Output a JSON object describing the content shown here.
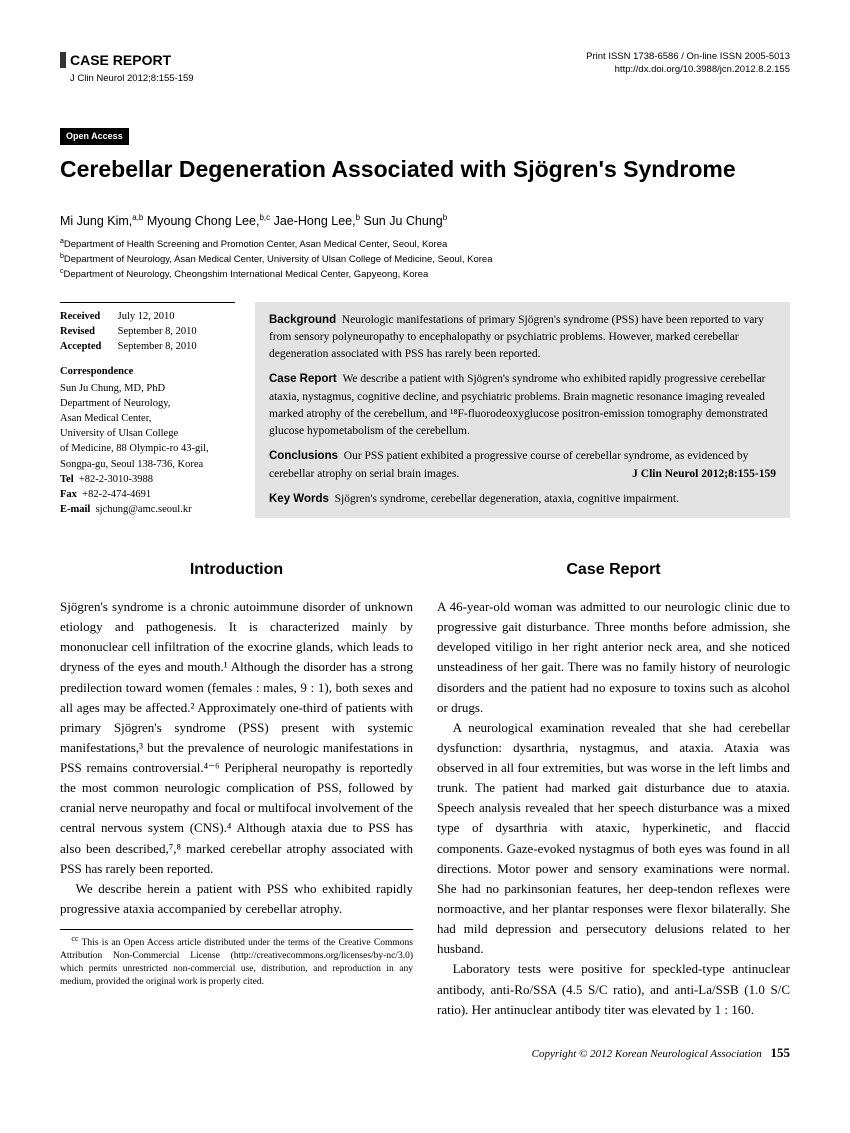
{
  "header": {
    "case_report_label": "CASE REPORT",
    "journal_cite": "J Clin Neurol 2012;8:155-159",
    "issn_line": "Print ISSN 1738-6586 / On-line ISSN 2005-5013",
    "doi_line": "http://dx.doi.org/10.3988/jcn.2012.8.2.155"
  },
  "open_access": "Open Access",
  "title": "Cerebellar Degeneration Associated with Sjögren's Syndrome",
  "authors_html": "Mi Jung Kim,<sup>a,b</sup> Myoung Chong Lee,<sup>b,c</sup> Jae-Hong Lee,<sup>b</sup> Sun Ju Chung<sup>b</sup>",
  "affiliations": {
    "a": "Department of Health Screening and Promotion Center, Asan Medical Center, Seoul, Korea",
    "b": "Department of Neurology, Asan Medical Center, University of Ulsan College of Medicine, Seoul, Korea",
    "c": "Department of Neurology, Cheongshim International Medical Center, Gapyeong, Korea"
  },
  "dates": {
    "received_label": "Received",
    "received": "July 12, 2010",
    "revised_label": "Revised",
    "revised": "September 8, 2010",
    "accepted_label": "Accepted",
    "accepted": "September 8, 2010"
  },
  "correspondence": {
    "label": "Correspondence",
    "name": "Sun Ju Chung, MD, PhD",
    "dept": "Department of Neurology,",
    "center": "Asan Medical Center,",
    "univ": "University of Ulsan College",
    "addr1": "of Medicine, 88 Olympic-ro 43-gil,",
    "addr2": "Songpa-gu, Seoul 138-736, Korea",
    "tel_label": "Tel",
    "tel": "+82-2-3010-3988",
    "fax_label": "Fax",
    "fax": "+82-2-474-4691",
    "email_label": "E-mail",
    "email": "sjchung@amc.seoul.kr"
  },
  "abstract": {
    "background_label": "Background",
    "background": "Neurologic manifestations of primary Sjögren's syndrome (PSS) have been reported to vary from sensory polyneuropathy to encephalopathy or psychiatric problems. However, marked cerebellar degeneration associated with PSS has rarely been reported.",
    "case_label": "Case Report",
    "case": "We describe a patient with Sjögren's syndrome who exhibited rapidly progressive cerebellar ataxia, nystagmus, cognitive decline, and psychiatric problems. Brain magnetic resonance imaging revealed marked atrophy of the cerebellum, and ¹⁸F-fluorodeoxyglucose positron-emission tomography demonstrated glucose hypometabolism of the cerebellum.",
    "conclusions_label": "Conclusions",
    "conclusions": "Our PSS patient exhibited a progressive course of cerebellar syndrome, as evidenced by cerebellar atrophy on serial brain images.",
    "inline_cite": "J Clin Neurol 2012;8:155-159",
    "keywords_label": "Key Words",
    "keywords": "Sjögren's syndrome, cerebellar degeneration, ataxia, cognitive impairment."
  },
  "sections": {
    "intro_title": "Introduction",
    "intro_p1": "Sjögren's syndrome is a chronic autoimmune disorder of unknown etiology and pathogenesis. It is characterized mainly by mononuclear cell infiltration of the exocrine glands, which leads to dryness of the eyes and mouth.¹ Although the disorder has a strong predilection toward women (females : males, 9 : 1), both sexes and all ages may be affected.² Approximately one-third of patients with primary Sjögren's syndrome (PSS) present with systemic manifestations,³ but the prevalence of neurologic manifestations in PSS remains controversial.⁴⁻⁶ Peripheral neuropathy is reportedly the most common neurologic complication of PSS, followed by cranial nerve neuropathy and focal or multifocal involvement of the central nervous system (CNS).⁴ Although ataxia due to PSS has also been described,⁷,⁸ marked cerebellar atrophy associated with PSS has rarely been reported.",
    "intro_p2": "We describe herein a patient with PSS who exhibited rapidly progressive ataxia accompanied by cerebellar atrophy.",
    "case_title": "Case Report",
    "case_p1": "A 46-year-old woman was admitted to our neurologic clinic due to progressive gait disturbance. Three months before admission, she developed vitiligo in her right anterior neck area, and she noticed unsteadiness of her gait. There was no family history of neurologic disorders and the patient had no exposure to toxins such as alcohol or drugs.",
    "case_p2": "A neurological examination revealed that she had cerebellar dysfunction: dysarthria, nystagmus, and ataxia. Ataxia was observed in all four extremities, but was worse in the left limbs and trunk. The patient had marked gait disturbance due to ataxia. Speech analysis revealed that her speech disturbance was a mixed type of dysarthria with ataxic, hyperkinetic, and flaccid components. Gaze-evoked nystagmus of both eyes was found in all directions. Motor power and sensory examinations were normal. She had no parkinsonian features, her deep-tendon reflexes were normoactive, and her plantar responses were flexor bilaterally. She had mild depression and persecutory delusions related to her husband.",
    "case_p3": "Laboratory tests were positive for speckled-type antinuclear antibody, anti-Ro/SSA (4.5 S/C ratio), and anti-La/SSB (1.0 S/C ratio). Her antinuclear antibody titer was elevated by 1 : 160."
  },
  "footnote": "This is an Open Access article distributed under the terms of the Creative Commons Attribution Non-Commercial License (http://creativecommons.org/licenses/by-nc/3.0) which permits unrestricted non-commercial use, distribution, and reproduction in any medium, provided the original work is properly cited.",
  "footer": {
    "copyright": "Copyright © 2012 Korean Neurological Association",
    "page": "155"
  }
}
